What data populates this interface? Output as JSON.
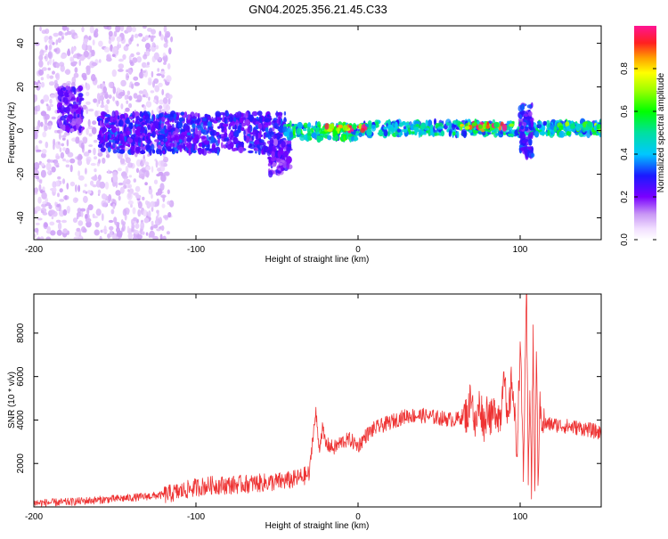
{
  "title": "GN04.2025.356.21.45.C33",
  "chart_data": [
    {
      "type": "heatmap",
      "title": "GN04.2025.356.21.45.C33",
      "xlabel": "Height of straight line (km)",
      "ylabel": "Frequency (Hz)",
      "xlim": [
        -200,
        150
      ],
      "ylim": [
        -50,
        48
      ],
      "x_ticks": [
        -200,
        -100,
        0,
        100
      ],
      "y_ticks": [
        -40,
        -20,
        0,
        20,
        40
      ],
      "x_tick_labels": [
        "-200",
        "-100",
        "0",
        "100"
      ],
      "y_tick_labels": [
        "-40",
        "-20",
        "0",
        "20",
        "40"
      ],
      "colorbar": {
        "label": "Normalized spectral amplitude",
        "range": [
          0,
          1
        ],
        "ticks": [
          0.0,
          0.2,
          0.4,
          0.6,
          0.8
        ],
        "tick_labels": [
          "0.0",
          "0.2",
          "0.4",
          "0.6",
          "0.8"
        ],
        "colormap": "rainbow (white-violet-blue-cyan-green-yellow-red-pink)"
      },
      "features": [
        {
          "x_range": [
            -200,
            -115
          ],
          "y_range": [
            -50,
            48
          ],
          "amplitude": 0.1,
          "description": "diffuse scattered low-amplitude energy"
        },
        {
          "x_range": [
            -185,
            -170
          ],
          "y_range": [
            0,
            20
          ],
          "amplitude": 0.25
        },
        {
          "x_range": [
            -160,
            -45
          ],
          "y_range": [
            -10,
            8
          ],
          "amplitude": 0.3
        },
        {
          "x_range": [
            -55,
            -42
          ],
          "y_range": [
            -20,
            -5
          ],
          "amplitude": 0.25
        },
        {
          "x_range": [
            -45,
            0
          ],
          "y_range": [
            -4,
            3
          ],
          "amplitude": 0.55
        },
        {
          "x_range": [
            0,
            150
          ],
          "y_range": [
            -2,
            4
          ],
          "amplitude": 0.5
        },
        {
          "x_range": [
            -20,
            5
          ],
          "y_range": [
            0,
            2
          ],
          "amplitude": 0.9
        },
        {
          "x_range": [
            60,
            95
          ],
          "y_range": [
            1,
            3
          ],
          "amplitude": 0.9
        },
        {
          "x_range": [
            100,
            108
          ],
          "y_range": [
            -12,
            12
          ],
          "amplitude": 0.3
        },
        {
          "x_range": [
            120,
            150
          ],
          "y_range": [
            0,
            3
          ],
          "amplitude": 0.65
        }
      ],
      "grid": false
    },
    {
      "type": "line",
      "xlabel": "Height of straight line (km)",
      "ylabel": "SNR (10 * v/v)",
      "xlim": [
        -200,
        150
      ],
      "ylim": [
        0,
        9800
      ],
      "x_ticks": [
        -200,
        -100,
        0,
        100
      ],
      "y_ticks": [
        2000,
        4000,
        6000,
        8000
      ],
      "x_tick_labels": [
        "-200",
        "-100",
        "0",
        "100"
      ],
      "y_tick_labels": [
        "2000",
        "4000",
        "6000",
        "8000"
      ],
      "color": "#ee3333",
      "series": [
        {
          "x": [
            -200,
            -180,
            -160,
            -140,
            -120,
            -110,
            -100,
            -90,
            -80,
            -70,
            -60,
            -50,
            -40,
            -30,
            -28,
            -26,
            -24,
            -22,
            -20,
            -15,
            -10,
            -5,
            0,
            5,
            10,
            20,
            30,
            40,
            50,
            60,
            68,
            70,
            72,
            75,
            78,
            80,
            82,
            85,
            88,
            90,
            92,
            95,
            98,
            100,
            102,
            104,
            105,
            106,
            107,
            108,
            109,
            110,
            111,
            112,
            115,
            120,
            130,
            140,
            150
          ],
          "y": [
            180,
            220,
            320,
            420,
            550,
            700,
            900,
            1000,
            1000,
            1050,
            1100,
            1150,
            1250,
            1500,
            3200,
            4300,
            2700,
            3600,
            2900,
            2700,
            3000,
            3100,
            2800,
            3300,
            3600,
            3900,
            4200,
            4200,
            4100,
            4000,
            4300,
            5500,
            3500,
            4800,
            3800,
            4700,
            4000,
            4500,
            4100,
            6800,
            3500,
            6000,
            2500,
            7500,
            1800,
            9800,
            1000,
            6000,
            800,
            8000,
            300,
            7200,
            1200,
            4500,
            3800,
            3800,
            3700,
            3600,
            3400
          ]
        }
      ],
      "grid": false
    }
  ]
}
